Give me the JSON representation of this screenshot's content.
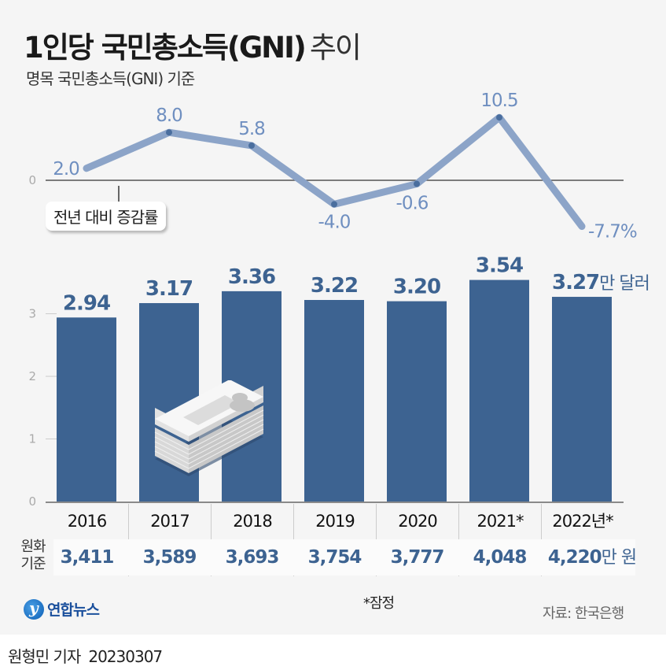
{
  "title": {
    "bold": "1인당 국민총소득(GNI)",
    "light": "추이"
  },
  "subtitle": "명목 국민총소득(GNI) 기준",
  "callout": "전년 대비 증감률",
  "colors": {
    "bar": "#3d6391",
    "line": "#8ca4c8",
    "line_point": "#4a6e9e",
    "line_label": "#6f8fc0",
    "background": "#f5f5f5"
  },
  "chart_data": [
    {
      "type": "line",
      "title": "전년 대비 증감률",
      "categories": [
        "2016",
        "2017",
        "2018",
        "2019",
        "2020",
        "2021*",
        "2022년*"
      ],
      "values": [
        2.0,
        8.0,
        5.8,
        -4.0,
        -0.6,
        10.5,
        -7.7
      ],
      "labels": [
        "2.0",
        "8.0",
        "5.8",
        "-4.0",
        "-0.6",
        "10.5",
        "-7.7%"
      ],
      "unit": "%",
      "yticks": [
        "0"
      ],
      "baseline": 0
    },
    {
      "type": "bar",
      "title": "1인당 국민총소득(GNI) 달러 기준",
      "categories": [
        "2016",
        "2017",
        "2018",
        "2019",
        "2020",
        "2021*",
        "2022년*"
      ],
      "values": [
        2.94,
        3.17,
        3.36,
        3.22,
        3.2,
        3.54,
        3.27
      ],
      "labels": [
        "2.94",
        "3.17",
        "3.36",
        "3.22",
        "3.20",
        "3.54",
        "3.27"
      ],
      "last_unit": "만 달러",
      "ylim": [
        0,
        3.6
      ],
      "yticks": [
        "0",
        "1",
        "2",
        "3"
      ]
    },
    {
      "type": "table",
      "row_label": "원화 기준",
      "categories": [
        "2016",
        "2017",
        "2018",
        "2019",
        "2020",
        "2021*",
        "2022년*"
      ],
      "values": [
        "3,411",
        "3,589",
        "3,693",
        "3,754",
        "3,777",
        "4,048",
        "4,220"
      ],
      "last_unit": "만 원"
    }
  ],
  "row_label": {
    "line1": "원화",
    "line2": "기준"
  },
  "footnote": "*잠정",
  "source": "자료: 한국은행",
  "logo_text": "연합뉴스",
  "byline": {
    "author": "원형민 기자",
    "date": "20230307"
  }
}
